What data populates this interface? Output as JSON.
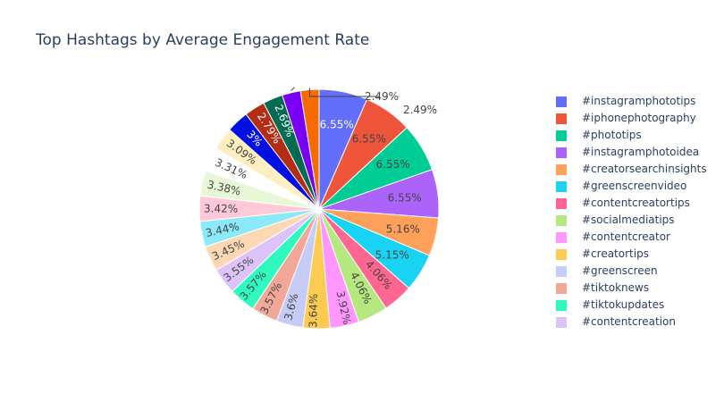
{
  "chart_data": {
    "type": "pie",
    "title": "Top Hashtags by Average Engagement Rate",
    "legend_position": "right",
    "slices": [
      {
        "label": "#instagramphototips",
        "value": 6.55,
        "text": "6.55%",
        "color": "#636efa"
      },
      {
        "label": "#iphonephotography",
        "value": 6.55,
        "text": "6.55%",
        "color": "#EF553B"
      },
      {
        "label": "#phototips",
        "value": 6.55,
        "text": "6.55%",
        "color": "#00cc96"
      },
      {
        "label": "#instagramphotoidea",
        "value": 6.55,
        "text": "6.55%",
        "color": "#ab63fa"
      },
      {
        "label": "#creatorsearchinsights",
        "value": 5.16,
        "text": "5.16%",
        "color": "#FFA15A"
      },
      {
        "label": "#greenscreenvideo",
        "value": 5.15,
        "text": "5.15%",
        "color": "#19d3f3"
      },
      {
        "label": "#contentcreatortips",
        "value": 4.06,
        "text": "4.06%",
        "color": "#FF6692"
      },
      {
        "label": "#socialmediatips",
        "value": 4.06,
        "text": "4.06%",
        "color": "#B6E880"
      },
      {
        "label": "#contentcreator",
        "value": 3.92,
        "text": "3.92%",
        "color": "#FF97FF"
      },
      {
        "label": "#creatortips",
        "value": 3.64,
        "text": "3.64%",
        "color": "#FECB52"
      },
      {
        "label": "#greenscreen",
        "value": 3.6,
        "text": "3.6%",
        "color": "#c6cbf7"
      },
      {
        "label": "#tiktoknews",
        "value": 3.57,
        "text": "3.57%",
        "color": "#f2a899"
      },
      {
        "label": "#tiktokupdates",
        "value": 3.57,
        "text": "3.57%",
        "color": "#2efac0"
      },
      {
        "label": "#contentcreation",
        "value": 3.55,
        "text": "3.55%",
        "color": "#dcc4fa"
      },
      {
        "label": "",
        "value": 3.45,
        "text": "3.45%",
        "color": "#fed8b5"
      },
      {
        "label": "",
        "value": 3.44,
        "text": "3.44%",
        "color": "#8be9f9"
      },
      {
        "label": "",
        "value": 3.42,
        "text": "3.42%",
        "color": "#ffc9da"
      },
      {
        "label": "",
        "value": 3.38,
        "text": "3.38%",
        "color": "#e8f7d6"
      },
      {
        "label": "",
        "value": 3.31,
        "text": "3.31%",
        "color": "#ffffff"
      },
      {
        "label": "",
        "value": 3.09,
        "text": "3.09%",
        "color": "#ffeebf"
      },
      {
        "label": "",
        "value": 3.0,
        "text": "3%",
        "color": "#0010e0"
      },
      {
        "label": "",
        "value": 2.79,
        "text": "2.79%",
        "color": "#b32c14"
      },
      {
        "label": "",
        "value": 2.69,
        "text": "2.69%",
        "color": "#006b4e"
      },
      {
        "label": "",
        "value": 2.49,
        "text": "2.49%",
        "color": "#7a00f5"
      },
      {
        "label": "",
        "value": 2.49,
        "text": "2.49%",
        "color": "#f56b00"
      }
    ]
  }
}
